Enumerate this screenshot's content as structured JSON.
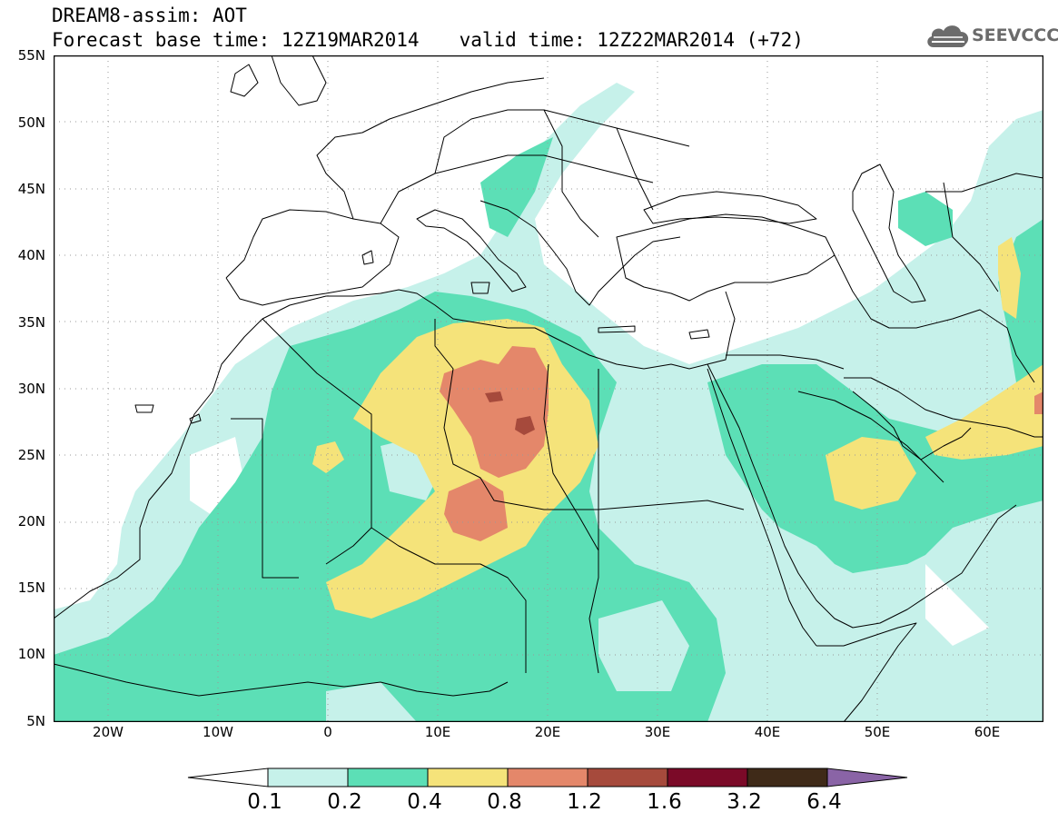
{
  "header": {
    "model_line": "DREAM8-assim: AOT",
    "base_time": "Forecast base time: 12Z19MAR2014",
    "valid_time": "valid time: 12Z22MAR2014 (+72)"
  },
  "logo": {
    "text": "SEEVCCC",
    "icon": "cloud-icon"
  },
  "map": {
    "lat_range": [
      5,
      55
    ],
    "lon_range": [
      -25,
      65
    ],
    "lat_labels": [
      "55N",
      "50N",
      "45N",
      "40N",
      "35N",
      "30N",
      "25N",
      "20N",
      "15N",
      "10N",
      "5N"
    ],
    "lon_labels": [
      "20W",
      "10W",
      "0",
      "10E",
      "20E",
      "30E",
      "40E",
      "50E",
      "60E"
    ]
  },
  "legend": {
    "levels": [
      "0.1",
      "0.2",
      "0.4",
      "0.8",
      "1.2",
      "1.6",
      "3.2",
      "6.4"
    ],
    "colors": [
      "#ffffff",
      "#c6f1ea",
      "#5cdfb6",
      "#f5e37a",
      "#e4876a",
      "#a64a3c",
      "#7b0a28",
      "#3f2a18",
      "#8a64a6"
    ]
  }
}
